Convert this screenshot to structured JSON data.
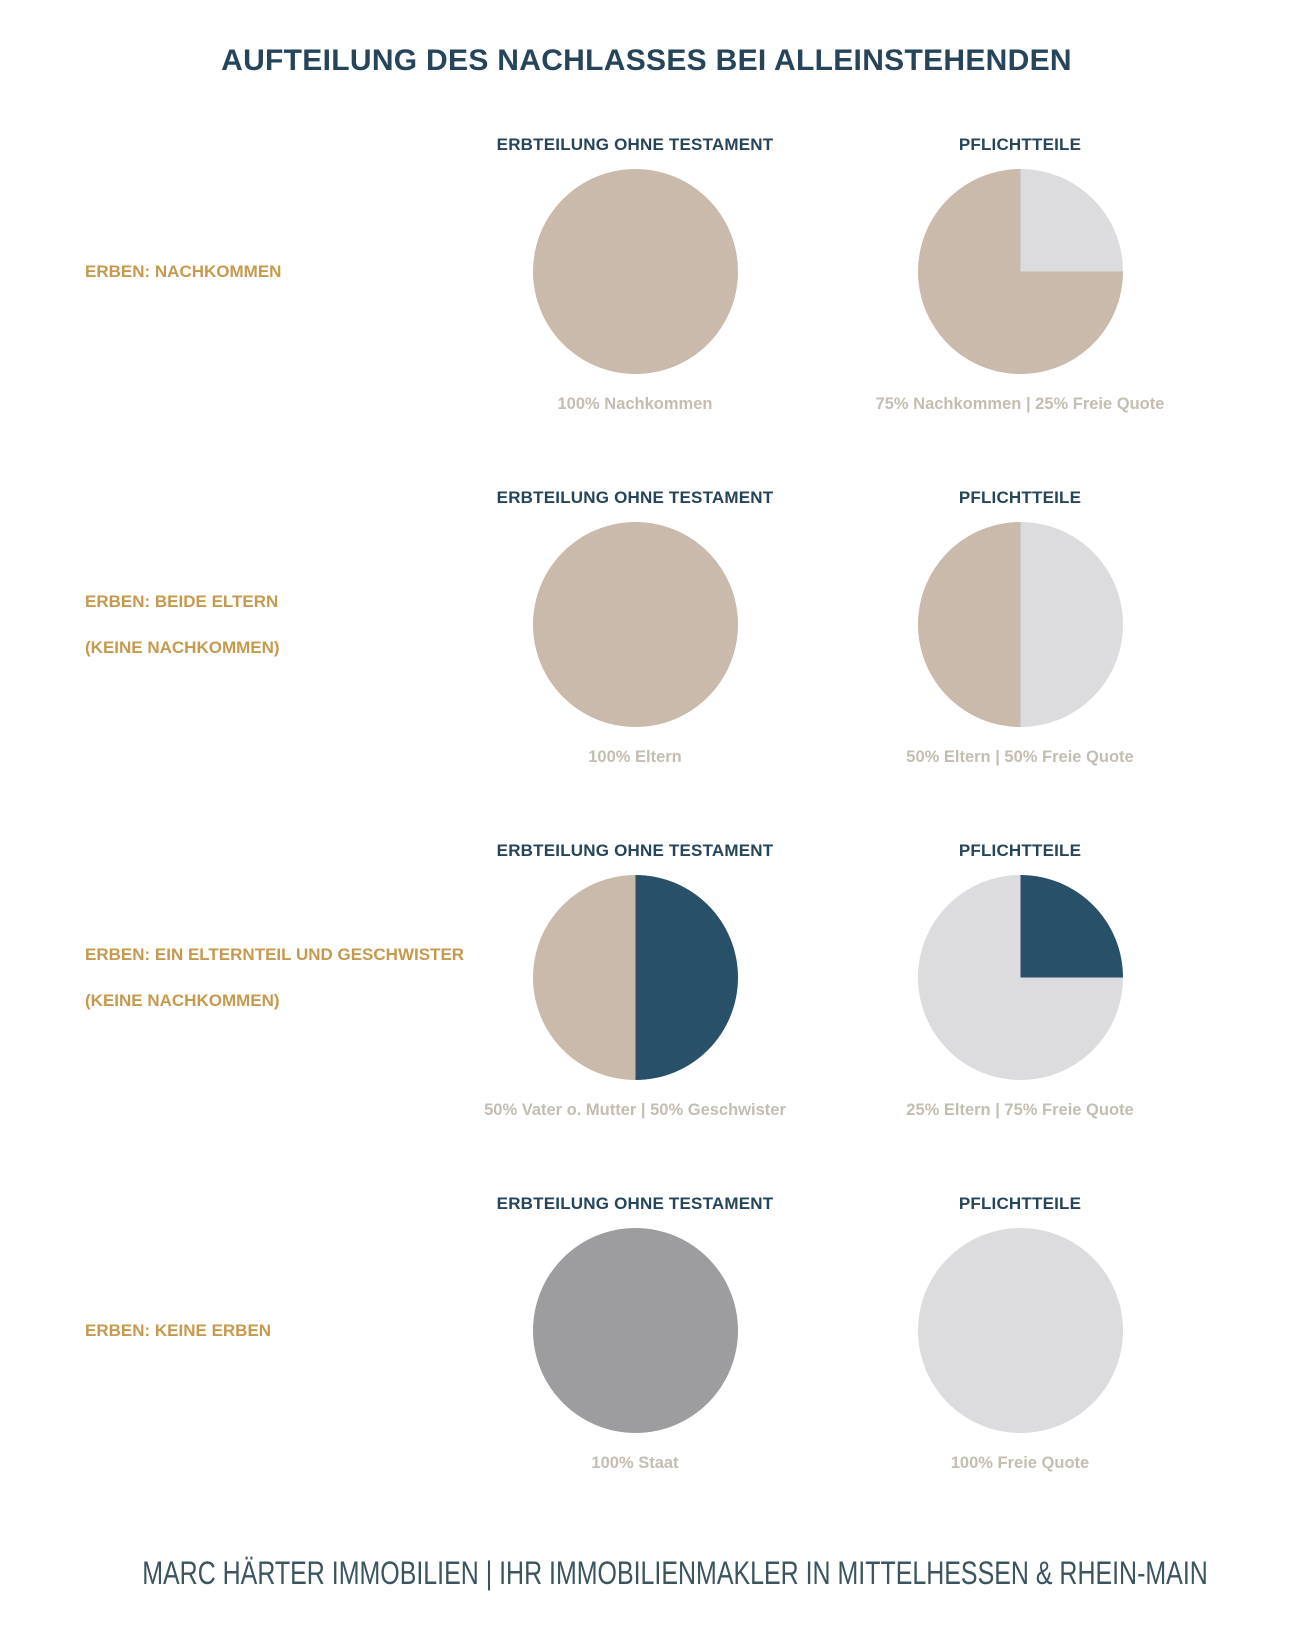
{
  "title": "AUFTEILUNG DES NACHLASSES BEI ALLEINSTEHENDEN",
  "footer": "MARC HÄRTER IMMOBILIEN | IHR IMMOBILIENMAKLER IN MITTELHESSEN & RHEIN-MAIN",
  "palette": {
    "tan": "#C9BAAB",
    "light_gray": "#DCDBDD",
    "navy": "#285069",
    "mid_gray": "#9D9D9F",
    "gold_label": "#C6994D",
    "heading_navy": "#26455A",
    "caption_gray": "#C4BDB1",
    "footer_color": "#3B545E"
  },
  "chart_data": {
    "type": "pie",
    "unit": "percent",
    "rows": [
      {
        "label_lines": [
          "ERBEN: NACHKOMMEN"
        ],
        "charts": [
          {
            "header": "ERBTEILUNG OHNE TESTAMENT",
            "caption": "100% Nachkommen",
            "slices": [
              {
                "label": "Nachkommen",
                "value": 100,
                "color": "#C9BAAB"
              }
            ]
          },
          {
            "header": "PFLICHTTEILE",
            "caption": "75% Nachkommen | 25% Freie Quote",
            "slices": [
              {
                "label": "Freie Quote",
                "value": 25,
                "color": "#DCDBDD"
              },
              {
                "label": "Nachkommen",
                "value": 75,
                "color": "#C9BAAB"
              }
            ]
          }
        ]
      },
      {
        "label_lines": [
          "ERBEN: BEIDE ELTERN",
          "(KEINE NACHKOMMEN)"
        ],
        "charts": [
          {
            "header": "ERBTEILUNG OHNE TESTAMENT",
            "caption": "100% Eltern",
            "slices": [
              {
                "label": "Eltern",
                "value": 100,
                "color": "#C9BAAB"
              }
            ]
          },
          {
            "header": "PFLICHTTEILE",
            "caption": "50% Eltern | 50% Freie Quote",
            "slices": [
              {
                "label": "Freie Quote",
                "value": 50,
                "color": "#DCDBDD"
              },
              {
                "label": "Eltern",
                "value": 50,
                "color": "#C9BAAB"
              }
            ]
          }
        ]
      },
      {
        "label_lines": [
          "ERBEN: EIN ELTERNTEIL UND GESCHWISTER",
          "(KEINE NACHKOMMEN)"
        ],
        "charts": [
          {
            "header": "ERBTEILUNG OHNE TESTAMENT",
            "caption": "50% Vater o. Mutter | 50% Geschwister",
            "slices": [
              {
                "label": "Geschwister",
                "value": 50,
                "color": "#285069"
              },
              {
                "label": "Vater o. Mutter",
                "value": 50,
                "color": "#C9BAAB"
              }
            ]
          },
          {
            "header": "PFLICHTTEILE",
            "caption": "25% Eltern | 75% Freie Quote",
            "slices": [
              {
                "label": "Eltern",
                "value": 25,
                "color": "#285069"
              },
              {
                "label": "Freie Quote",
                "value": 75,
                "color": "#DCDBDD"
              }
            ]
          }
        ]
      },
      {
        "label_lines": [
          "ERBEN: KEINE ERBEN"
        ],
        "charts": [
          {
            "header": "ERBTEILUNG OHNE TESTAMENT",
            "caption": "100% Staat",
            "slices": [
              {
                "label": "Staat",
                "value": 100,
                "color": "#9D9D9F"
              }
            ]
          },
          {
            "header": "PFLICHTTEILE",
            "caption": "100% Freie Quote",
            "slices": [
              {
                "label": "Freie Quote",
                "value": 100,
                "color": "#DCDBDD"
              }
            ]
          }
        ]
      }
    ]
  }
}
